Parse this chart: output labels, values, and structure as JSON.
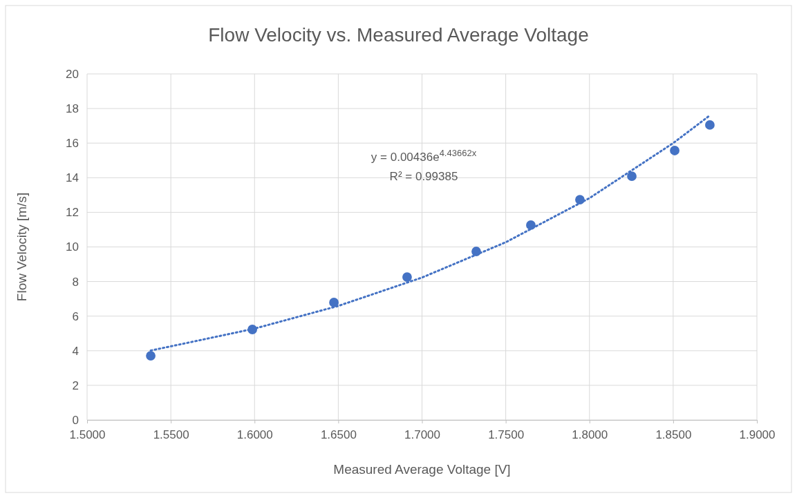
{
  "chart_data": {
    "type": "scatter",
    "title": "Flow Velocity vs. Measured Average Voltage",
    "xlabel": "Measured Average Voltage [V]",
    "ylabel": "Flow Velocity [m/s]",
    "xlim": [
      1.5,
      1.9
    ],
    "xticks": [
      {
        "value": 1.5,
        "label": "1.5000"
      },
      {
        "value": 1.55,
        "label": "1.5500"
      },
      {
        "value": 1.6,
        "label": "1.6000"
      },
      {
        "value": 1.65,
        "label": "1.6500"
      },
      {
        "value": 1.7,
        "label": "1.7000"
      },
      {
        "value": 1.75,
        "label": "1.7500"
      },
      {
        "value": 1.8,
        "label": "1.8000"
      },
      {
        "value": 1.85,
        "label": "1.8500"
      },
      {
        "value": 1.9,
        "label": "1.9000"
      }
    ],
    "ylim": [
      0,
      20
    ],
    "yticks": [
      0,
      2,
      4,
      6,
      8,
      10,
      12,
      14,
      16,
      18,
      20
    ],
    "grid": true,
    "marker": "circle",
    "series": [
      {
        "color": "#4472c4",
        "x": [
          1.538,
          1.5987,
          1.6474,
          1.6911,
          1.7324,
          1.765,
          1.7943,
          1.8253,
          1.8509,
          1.8719
        ],
        "values": [
          3.71,
          5.23,
          6.79,
          8.26,
          9.74,
          11.26,
          12.73,
          14.09,
          15.57,
          17.05
        ]
      },
      {
        "type": "line",
        "color": "#4472c4",
        "line_style": "dotted",
        "marker": "none",
        "x": [
          1.538,
          1.6,
          1.65,
          1.7,
          1.75,
          1.8,
          1.85,
          1.8719
        ],
        "values": [
          4.01,
          5.28,
          6.59,
          8.23,
          10.27,
          12.82,
          16.0,
          17.6
        ]
      }
    ],
    "annotations": [
      "y = 0.00436e$^{4.43662x}$",
      "R² = 0.99385"
    ]
  }
}
